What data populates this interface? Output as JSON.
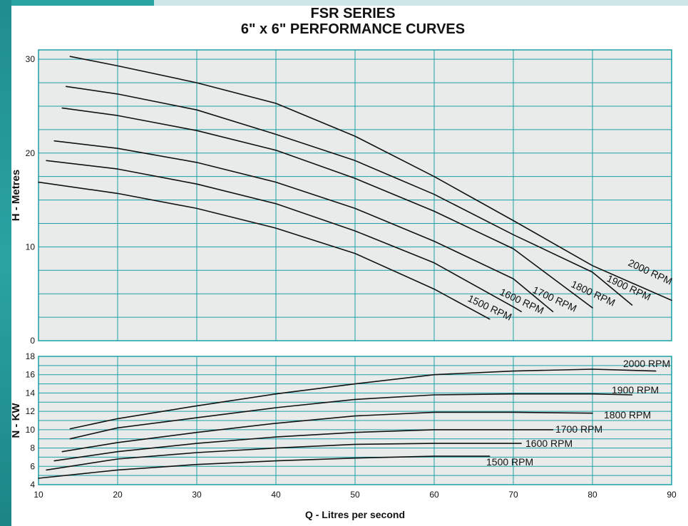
{
  "title_line1": "FSR SERIES",
  "title_line2": "6\" x 6\" PERFORMANCE CURVES",
  "colors": {
    "grid": "#1aa0a6",
    "curve": "#111111",
    "accent": "#2aa3a3"
  },
  "chart_data": [
    {
      "type": "line",
      "ylabel": "H - Metres",
      "xlim": [
        10,
        90
      ],
      "ylim": [
        0,
        31
      ],
      "yticks": [
        0,
        10,
        20,
        30
      ],
      "grid": true,
      "series": [
        {
          "name": "1500 RPM",
          "x": [
            10,
            20,
            30,
            40,
            50,
            60,
            67
          ],
          "y": [
            16.9,
            15.7,
            14.1,
            12.0,
            9.3,
            5.5,
            2.3
          ]
        },
        {
          "name": "1600 RPM",
          "x": [
            11,
            20,
            30,
            40,
            50,
            60,
            70,
            71
          ],
          "y": [
            19.2,
            18.3,
            16.7,
            14.6,
            11.7,
            8.3,
            3.6,
            3.1
          ]
        },
        {
          "name": "1700 RPM",
          "x": [
            12,
            20,
            30,
            40,
            50,
            60,
            70,
            75
          ],
          "y": [
            21.3,
            20.5,
            19.0,
            16.9,
            14.1,
            10.6,
            6.6,
            3.1
          ]
        },
        {
          "name": "1800 RPM",
          "x": [
            13,
            20,
            30,
            40,
            50,
            60,
            70,
            80
          ],
          "y": [
            24.8,
            24.0,
            22.4,
            20.3,
            17.3,
            13.8,
            9.8,
            3.5
          ]
        },
        {
          "name": "1900 RPM",
          "x": [
            13.5,
            20,
            30,
            40,
            50,
            60,
            70,
            80,
            85
          ],
          "y": [
            27.1,
            26.3,
            24.6,
            22.0,
            19.2,
            15.6,
            11.3,
            7.3,
            3.8
          ]
        },
        {
          "name": "2000 RPM",
          "x": [
            14,
            20,
            30,
            40,
            50,
            60,
            70,
            80,
            90
          ],
          "y": [
            30.3,
            29.3,
            27.5,
            25.3,
            21.8,
            17.5,
            12.8,
            8.0,
            4.3
          ]
        }
      ]
    },
    {
      "type": "line",
      "xlabel": "Q - Litres per second",
      "ylabel": "N - KW",
      "xlim": [
        10,
        90
      ],
      "ylim": [
        4,
        18
      ],
      "xticks": [
        10,
        20,
        30,
        40,
        50,
        60,
        70,
        80,
        90
      ],
      "yticks": [
        4,
        6,
        8,
        10,
        12,
        14,
        16,
        18
      ],
      "grid": true,
      "series": [
        {
          "name": "1500 RPM",
          "x": [
            10,
            20,
            30,
            40,
            50,
            60,
            67
          ],
          "y": [
            4.7,
            5.6,
            6.2,
            6.6,
            6.9,
            7.1,
            7.1
          ]
        },
        {
          "name": "1600 RPM",
          "x": [
            11,
            20,
            30,
            40,
            50,
            60,
            70,
            71
          ],
          "y": [
            5.6,
            6.8,
            7.5,
            8.0,
            8.4,
            8.5,
            8.5,
            8.5
          ]
        },
        {
          "name": "1700 RPM",
          "x": [
            12,
            20,
            30,
            40,
            50,
            60,
            70,
            75
          ],
          "y": [
            6.6,
            7.6,
            8.5,
            9.2,
            9.7,
            10.0,
            10.0,
            10.0
          ]
        },
        {
          "name": "1800 RPM",
          "x": [
            13,
            20,
            30,
            40,
            50,
            60,
            70,
            80
          ],
          "y": [
            7.6,
            8.6,
            9.7,
            10.7,
            11.5,
            11.9,
            11.9,
            11.8
          ]
        },
        {
          "name": "1900 RPM",
          "x": [
            14,
            20,
            30,
            40,
            50,
            60,
            70,
            80,
            85
          ],
          "y": [
            9.0,
            10.2,
            11.3,
            12.4,
            13.3,
            13.8,
            13.9,
            13.9,
            13.8
          ]
        },
        {
          "name": "2000 RPM",
          "x": [
            14,
            20,
            30,
            40,
            50,
            60,
            70,
            80,
            88
          ],
          "y": [
            10.1,
            11.2,
            12.6,
            13.9,
            15.0,
            16.0,
            16.4,
            16.6,
            16.4
          ]
        }
      ]
    }
  ]
}
